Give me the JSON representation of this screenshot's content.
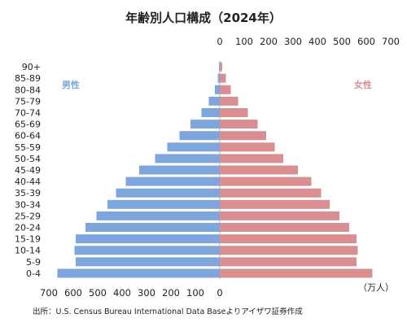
{
  "chart_data": {
    "type": "bar",
    "title": "年齢別人口構成（2024年）",
    "categories": [
      "0-4",
      "5-9",
      "10-14",
      "15-19",
      "20-24",
      "25-29",
      "30-34",
      "35-39",
      "40-44",
      "45-49",
      "50-54",
      "55-59",
      "60-64",
      "65-69",
      "70-74",
      "75-79",
      "80-84",
      "85-89",
      "90+"
    ],
    "series": [
      {
        "name": "男性",
        "color": "#7ea6dd",
        "values": [
          665,
          590,
          595,
          590,
          550,
          505,
          460,
          425,
          385,
          330,
          265,
          215,
          165,
          120,
          75,
          45,
          20,
          8,
          3
        ]
      },
      {
        "name": "女性",
        "color": "#d98f92",
        "values": [
          625,
          560,
          565,
          560,
          530,
          490,
          450,
          415,
          375,
          320,
          260,
          225,
          190,
          155,
          115,
          75,
          45,
          25,
          10
        ]
      }
    ],
    "male_axis": {
      "ticks": [
        700,
        600,
        500,
        400,
        300,
        200,
        100,
        0
      ],
      "range": [
        700,
        0
      ]
    },
    "female_axis": {
      "ticks": [
        0,
        100,
        200,
        300,
        400,
        500,
        600,
        700
      ],
      "range": [
        0,
        700
      ]
    },
    "unit_label": "（万人）",
    "source": "出所：U.S. Census Bureau International Data Baseよりアイザワ証券作成"
  }
}
